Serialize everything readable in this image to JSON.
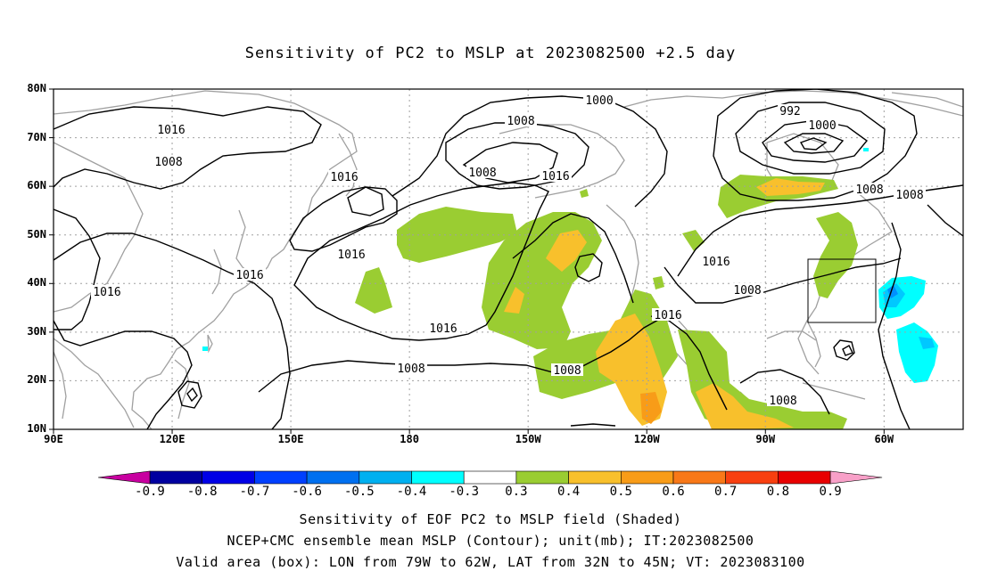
{
  "title": "Sensitivity of PC2 to MSLP at 2023082500 +2.5 day",
  "map": {
    "lat_labels": [
      "80N",
      "70N",
      "60N",
      "50N",
      "40N",
      "30N",
      "20N",
      "10N"
    ],
    "lon_labels": [
      "90E",
      "120E",
      "150E",
      "180",
      "150W",
      "120W",
      "90W",
      "60W"
    ],
    "contour_labels": [
      "1016",
      "1008",
      "1000",
      "992",
      "1000",
      "1008",
      "1016",
      "1008",
      "1016",
      "1008",
      "1008",
      "1016",
      "1016",
      "1016",
      "1008",
      "1016",
      "1016",
      "1016",
      "1008",
      "1008",
      "1008"
    ],
    "colors": {
      "land_outline": "#a0a0a0",
      "grid": "#a0a0a0",
      "contour": "#000000",
      "shade_0_3": "#9acd32",
      "shade_0_4": "#f8c02c",
      "shade_0_5": "#f89c18",
      "neg_0_4": "#00ffff",
      "neg_0_5": "#00c8ff",
      "neg_0_6": "#0090ff"
    },
    "valid_box": {
      "lon_w": "79W",
      "lon_e": "62W",
      "lat_s": "32N",
      "lat_n": "45N"
    }
  },
  "colorbar": {
    "labels": [
      "-0.9",
      "-0.8",
      "-0.7",
      "-0.6",
      "-0.5",
      "-0.4",
      "-0.3",
      "0.3",
      "0.4",
      "0.5",
      "0.6",
      "0.7",
      "0.8",
      "0.9"
    ],
    "colors": [
      "#0000a0",
      "#0000e6",
      "#0040ff",
      "#0070f0",
      "#00b0f0",
      "#00ffff",
      "#ffffff",
      "#9acd32",
      "#f8c02c",
      "#f89c18",
      "#f87818",
      "#f84010",
      "#e80000"
    ],
    "low_end": "#c800a0",
    "high_end": "#f8a0c8"
  },
  "captions": {
    "line1": "Sensitivity of EOF PC2 to MSLP field (Shaded)",
    "line2": "NCEP+CMC ensemble mean MSLP (Contour); unit(mb); IT:2023082500",
    "line3": "Valid area (box): LON from 79W to 62W, LAT from 32N to 45N; VT: 2023083100"
  }
}
